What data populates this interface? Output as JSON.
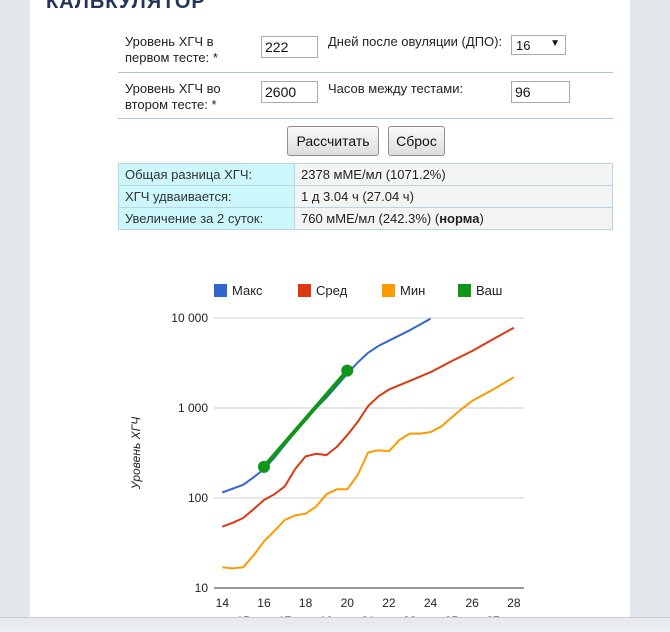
{
  "section": {
    "title": "КАЛЬКУЛЯТОР"
  },
  "form": {
    "hcg1_label": "Уровень ХГЧ в первом тесте: *",
    "hcg1_value": "222",
    "dpo_label": "Дней после овуляции (ДПО):",
    "dpo_value": "16",
    "hcg2_label": "Уровень ХГЧ во втором тесте: *",
    "hcg2_value": "2600",
    "hours_label": "Часов между тестами:",
    "hours_value": "96",
    "calc_button": "Рассчитать",
    "reset_button": "Сброс"
  },
  "results": {
    "rows": [
      {
        "label": "Общая разница ХГЧ:",
        "value": "2378 мМЕ/мл (1071.2%)"
      },
      {
        "label": "ХГЧ удваивается:",
        "value": "1 д 3.04 ч (27.04 ч)"
      },
      {
        "label": "Увеличение за 2 суток:",
        "value": "760 мМЕ/мл (242.3%) (",
        "value_bold": "норма",
        "value_tail": ")"
      }
    ]
  },
  "chart_data": {
    "type": "line",
    "ylabel": "Уровень ХГЧ",
    "yscale": "log",
    "ylim": [
      10,
      10000
    ],
    "yticks": [
      10,
      100,
      1000,
      10000
    ],
    "ytick_labels": [
      "10",
      "100",
      "1 000",
      "10 000"
    ],
    "xlim": [
      13.6,
      28.2
    ],
    "xticks_major": [
      14,
      16,
      18,
      20,
      22,
      24,
      26,
      28
    ],
    "xticks_minor": [
      15,
      17,
      19,
      21,
      23,
      25,
      27
    ],
    "grid": true,
    "legend_position": "top",
    "series": [
      {
        "name": "Макс",
        "color": "#3366cc",
        "x": [
          14,
          15,
          15.5,
          16,
          16.5,
          17,
          17.5,
          18,
          19,
          20,
          20.5,
          21,
          21.5,
          22,
          23,
          24
        ],
        "y": [
          115,
          140,
          170,
          210,
          280,
          390,
          540,
          760,
          1300,
          2400,
          3200,
          4100,
          4900,
          5600,
          7300,
          9800
        ]
      },
      {
        "name": "Сред",
        "color": "#dc3912",
        "x": [
          14,
          14.5,
          15,
          15.5,
          16,
          16.5,
          17,
          17.5,
          18,
          18.5,
          19,
          19.5,
          20,
          20.5,
          21,
          21.5,
          22,
          23,
          24,
          25,
          26,
          27,
          28
        ],
        "y": [
          48,
          53,
          60,
          75,
          95,
          110,
          135,
          210,
          290,
          310,
          300,
          370,
          500,
          700,
          1050,
          1350,
          1600,
          2000,
          2500,
          3300,
          4300,
          5800,
          7800
        ]
      },
      {
        "name": "Мин",
        "color": "#ff9900",
        "x": [
          14,
          14.5,
          15,
          15.5,
          16,
          16.5,
          17,
          17.5,
          18,
          18.5,
          19,
          19.5,
          20,
          20.5,
          21,
          21.5,
          22,
          22.5,
          23,
          23.5,
          24,
          24.5,
          25,
          25.5,
          26,
          27,
          28
        ],
        "y": [
          17,
          16.5,
          17,
          23,
          33,
          43,
          57,
          64,
          67,
          80,
          110,
          125,
          125,
          180,
          320,
          340,
          330,
          440,
          520,
          520,
          540,
          620,
          780,
          980,
          1200,
          1600,
          2200
        ]
      },
      {
        "name": "Ваш",
        "color": "#109618",
        "x": [
          16,
          20
        ],
        "y": [
          222,
          2600
        ],
        "markers": true
      }
    ]
  }
}
